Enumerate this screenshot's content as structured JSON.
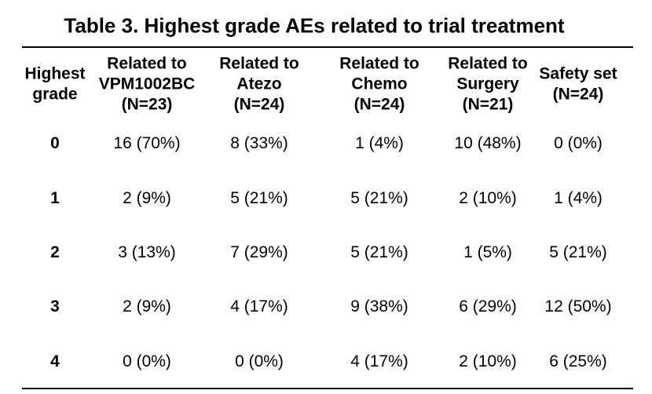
{
  "title": "Table 3. Highest grade AEs related to trial treatment",
  "table": {
    "header": [
      [
        "Highest",
        "grade"
      ],
      [
        "Related to",
        "VPM1002BC",
        "(N=23)"
      ],
      [
        "Related to",
        "Atezo",
        "(N=24)"
      ],
      [
        "Related to",
        "Chemo",
        "(N=24)"
      ],
      [
        "Related to",
        "Surgery",
        "(N=21)"
      ],
      [
        "Safety set",
        "(N=24)"
      ]
    ],
    "rows": [
      [
        "0",
        "16 (70%)",
        "8 (33%)",
        "1 (4%)",
        "10 (48%)",
        "0 (0%)"
      ],
      [
        "1",
        "2 (9%)",
        "5 (21%)",
        "5 (21%)",
        "2 (10%)",
        "1 (4%)"
      ],
      [
        "2",
        "3 (13%)",
        "7 (29%)",
        "5 (21%)",
        "1 (5%)",
        "5 (21%)"
      ],
      [
        "3",
        "2 (9%)",
        "4 (17%)",
        "9 (38%)",
        "6 (29%)",
        "12 (50%)"
      ],
      [
        "4",
        "0 (0%)",
        "0 (0%)",
        "4 (17%)",
        "2 (10%)",
        "6 (25%)"
      ]
    ]
  }
}
